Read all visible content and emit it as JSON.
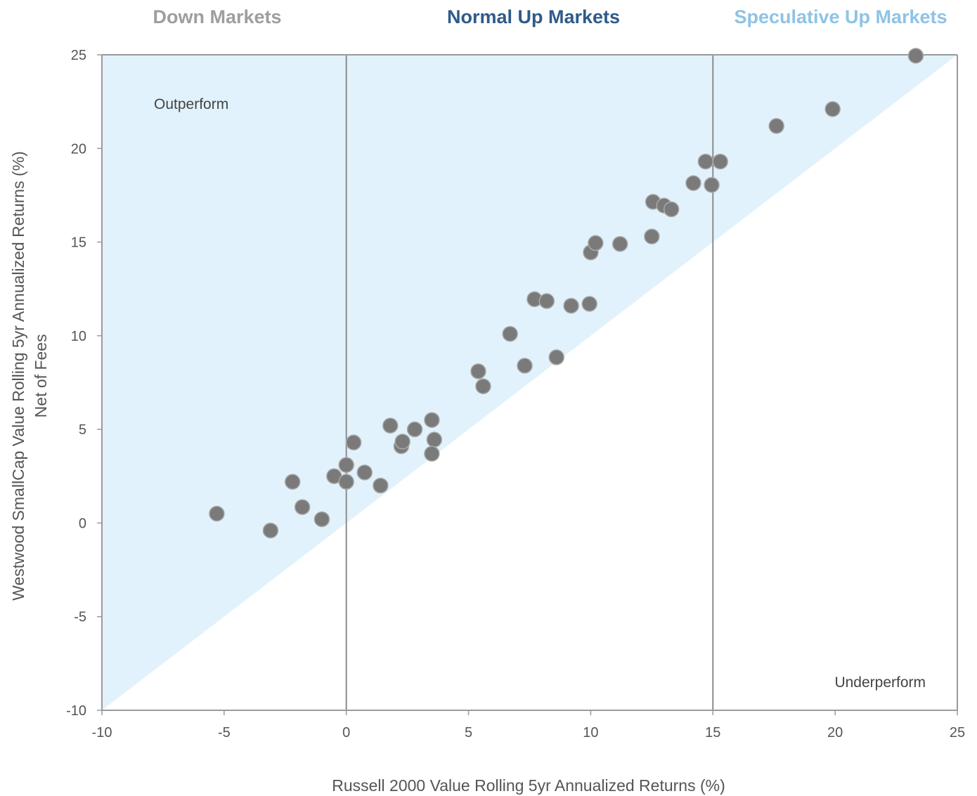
{
  "chart_data": {
    "type": "scatter",
    "xlabel": "Russell 2000 Value  Rolling 5yr Annualized Returns (%)",
    "ylabel_line1": "Westwood SmallCap Value  Rolling  5yr Annualized Returns (%)",
    "ylabel_line2": "Net of Fees",
    "xlim": [
      -10,
      25
    ],
    "ylim": [
      -10,
      25
    ],
    "xticks": [
      -10,
      -5,
      0,
      5,
      10,
      15,
      20,
      25
    ],
    "yticks": [
      -10,
      -5,
      0,
      5,
      10,
      15,
      20,
      25
    ],
    "region_labels": [
      {
        "text": "Down Markets",
        "color": "#9e9e9e"
      },
      {
        "text": "Normal Up Markets",
        "color": "#2e5b8a"
      },
      {
        "text": "Speculative Up Markets",
        "color": "#8ec3e6"
      }
    ],
    "region_dividers_x": [
      0,
      15
    ],
    "annotations": {
      "outperform": "Outperform",
      "underperform": "Underperform"
    },
    "colors": {
      "fill": "#e1f2fc",
      "point": "#7a7a7a",
      "point_edge": "#a9a9a9",
      "axis": "#9a9a9a",
      "divider": "#8c8c8c"
    },
    "grid": false,
    "points": [
      {
        "x": -5.3,
        "y": 0.5
      },
      {
        "x": -3.1,
        "y": -0.4
      },
      {
        "x": -2.2,
        "y": 2.2
      },
      {
        "x": -1.8,
        "y": 0.85
      },
      {
        "x": -1.0,
        "y": 0.2
      },
      {
        "x": -0.5,
        "y": 2.5
      },
      {
        "x": 0.0,
        "y": 3.1
      },
      {
        "x": 0.0,
        "y": 2.2
      },
      {
        "x": 0.3,
        "y": 4.3
      },
      {
        "x": 0.75,
        "y": 2.7
      },
      {
        "x": 1.4,
        "y": 2.0
      },
      {
        "x": 1.8,
        "y": 5.2
      },
      {
        "x": 2.25,
        "y": 4.1
      },
      {
        "x": 2.3,
        "y": 4.35
      },
      {
        "x": 2.8,
        "y": 5.0
      },
      {
        "x": 3.5,
        "y": 5.5
      },
      {
        "x": 3.6,
        "y": 4.45
      },
      {
        "x": 3.5,
        "y": 3.7
      },
      {
        "x": 5.4,
        "y": 8.1
      },
      {
        "x": 5.6,
        "y": 7.3
      },
      {
        "x": 6.7,
        "y": 10.1
      },
      {
        "x": 7.3,
        "y": 8.4
      },
      {
        "x": 7.7,
        "y": 11.95
      },
      {
        "x": 8.2,
        "y": 11.85
      },
      {
        "x": 8.6,
        "y": 8.85
      },
      {
        "x": 9.2,
        "y": 11.6
      },
      {
        "x": 9.95,
        "y": 11.7
      },
      {
        "x": 10.0,
        "y": 14.45
      },
      {
        "x": 10.2,
        "y": 14.95
      },
      {
        "x": 11.2,
        "y": 14.9
      },
      {
        "x": 12.5,
        "y": 15.3
      },
      {
        "x": 12.55,
        "y": 17.15
      },
      {
        "x": 13.0,
        "y": 16.95
      },
      {
        "x": 13.3,
        "y": 16.75
      },
      {
        "x": 14.2,
        "y": 18.15
      },
      {
        "x": 14.7,
        "y": 19.3
      },
      {
        "x": 14.95,
        "y": 18.05
      },
      {
        "x": 15.3,
        "y": 19.3
      },
      {
        "x": 17.6,
        "y": 21.2
      },
      {
        "x": 19.9,
        "y": 22.1
      },
      {
        "x": 23.3,
        "y": 24.95
      }
    ]
  }
}
